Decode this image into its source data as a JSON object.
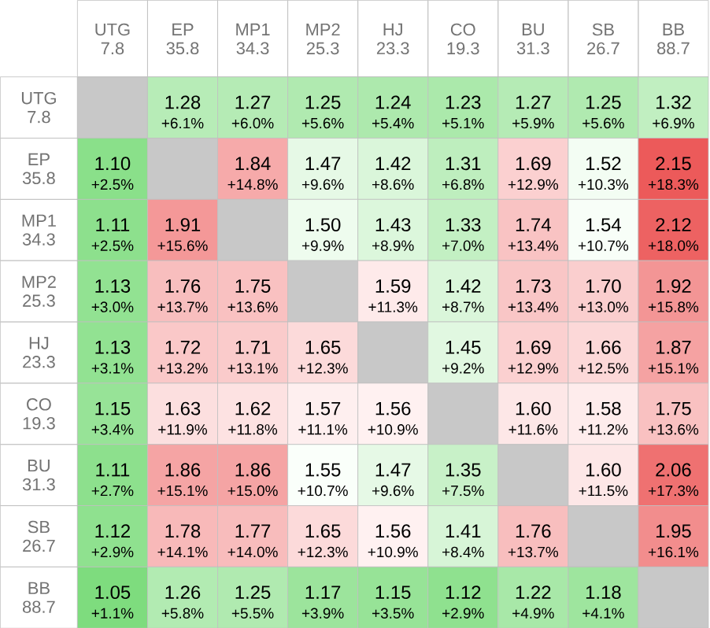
{
  "chart_data": {
    "type": "heatmap",
    "categories": [
      "UTG 7.8",
      "EP 35.8",
      "MP1 34.3",
      "MP2 25.3",
      "HJ 23.3",
      "CO 19.3",
      "BU 31.3",
      "SB 26.7",
      "BB 88.7"
    ],
    "y_categories": [
      "UTG 7.8",
      "EP 35.8",
      "MP1 34.3",
      "MP2 25.3",
      "HJ 23.3",
      "CO 19.3",
      "BU 31.3",
      "SB 26.7",
      "BB 88.7"
    ],
    "cells": [
      [
        null,
        1.28,
        1.27,
        1.25,
        1.24,
        1.23,
        1.27,
        1.25,
        1.32
      ],
      [
        1.1,
        null,
        1.84,
        1.47,
        1.42,
        1.31,
        1.69,
        1.52,
        2.15
      ],
      [
        1.11,
        1.91,
        null,
        1.5,
        1.43,
        1.33,
        1.74,
        1.54,
        2.12
      ],
      [
        1.13,
        1.76,
        1.75,
        null,
        1.59,
        1.42,
        1.73,
        1.7,
        1.92
      ],
      [
        1.13,
        1.72,
        1.71,
        1.65,
        null,
        1.45,
        1.69,
        1.66,
        1.87
      ],
      [
        1.15,
        1.63,
        1.62,
        1.57,
        1.56,
        null,
        1.6,
        1.58,
        1.75
      ],
      [
        1.11,
        1.86,
        1.86,
        1.55,
        1.47,
        1.35,
        null,
        1.6,
        2.06
      ],
      [
        1.12,
        1.78,
        1.77,
        1.65,
        1.56,
        1.41,
        1.76,
        null,
        1.95
      ],
      [
        1.05,
        1.26,
        1.25,
        1.17,
        1.15,
        1.12,
        1.22,
        1.18,
        null
      ]
    ],
    "cell_labels": [
      [
        null,
        "1.28",
        "1.27",
        "1.25",
        "1.24",
        "1.23",
        "1.27",
        "1.25",
        "1.32"
      ],
      [
        "1.10",
        null,
        "1.84",
        "1.47",
        "1.42",
        "1.31",
        "1.69",
        "1.52",
        "2.15"
      ],
      [
        "1.11",
        "1.91",
        null,
        "1.50",
        "1.43",
        "1.33",
        "1.74",
        "1.54",
        "2.12"
      ],
      [
        "1.13",
        "1.76",
        "1.75",
        null,
        "1.59",
        "1.42",
        "1.73",
        "1.70",
        "1.92"
      ],
      [
        "1.13",
        "1.72",
        "1.71",
        "1.65",
        null,
        "1.45",
        "1.69",
        "1.66",
        "1.87"
      ],
      [
        "1.15",
        "1.63",
        "1.62",
        "1.57",
        "1.56",
        null,
        "1.60",
        "1.58",
        "1.75"
      ],
      [
        "1.11",
        "1.86",
        "1.86",
        "1.55",
        "1.47",
        "1.35",
        null,
        "1.60",
        "2.06"
      ],
      [
        "1.12",
        "1.78",
        "1.77",
        "1.65",
        "1.56",
        "1.41",
        "1.76",
        null,
        "1.95"
      ],
      [
        "1.05",
        "1.26",
        "1.25",
        "1.17",
        "1.15",
        "1.12",
        "1.22",
        "1.18",
        null
      ]
    ],
    "annotations": [
      "+6.1%",
      "+6.0%",
      "+5.6%",
      "+5.4%",
      "+5.1%",
      "+5.9%",
      "+5.6%",
      "+6.9%",
      "+2.5%",
      "+14.8%",
      "+9.6%",
      "+8.6%",
      "+6.8%",
      "+12.9%",
      "+10.3%",
      "+18.3%",
      "+2.5%",
      "+15.6%",
      "+9.9%",
      "+8.9%",
      "+7.0%",
      "+13.4%",
      "+10.7%",
      "+18.0%",
      "+3.0%",
      "+13.7%",
      "+13.6%",
      "+11.3%",
      "+8.7%",
      "+13.4%",
      "+13.0%",
      "+15.8%",
      "+3.1%",
      "+13.2%",
      "+13.1%",
      "+12.3%",
      "+9.2%",
      "+12.9%",
      "+12.5%",
      "+15.1%",
      "+3.4%",
      "+11.9%",
      "+11.8%",
      "+11.1%",
      "+10.9%",
      "+11.6%",
      "+11.2%",
      "+13.6%",
      "+2.7%",
      "+15.1%",
      "+15.0%",
      "+10.7%",
      "+9.6%",
      "+7.5%",
      "+11.5%",
      "+17.3%",
      "+2.9%",
      "+14.1%",
      "+14.0%",
      "+12.3%",
      "+10.9%",
      "+8.4%",
      "+13.7%",
      "+16.1%",
      "+1.1%",
      "+5.8%",
      "+5.5%",
      "+3.9%",
      "+3.5%",
      "+2.9%",
      "+4.9%",
      "+4.1%"
    ]
  }
}
